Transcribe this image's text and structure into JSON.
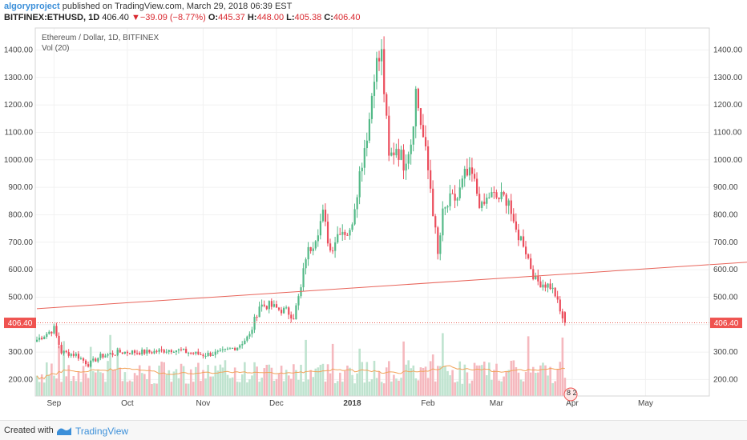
{
  "header": {
    "author": "algoryproject",
    "published_text": "published on TradingView.com, March 29, 2018 06:39 EST",
    "symbol": "BITFINEX:ETHUSD, 1D",
    "last": "406.40",
    "change_arrow": "▼",
    "change": "−39.09 (−8.77%)",
    "o_label": "O:",
    "o_value": "445.37",
    "h_label": "H:",
    "h_value": "448.00",
    "l_label": "L:",
    "l_value": "405.38",
    "c_label": "C:",
    "c_value": "406.40"
  },
  "legend": {
    "title": "Ethereum / Dollar, 1D, BITFINEX",
    "vol": "Vol (20)"
  },
  "colors": {
    "up": "#53b987",
    "down": "#eb4d5c",
    "vol_up": "#bfe3cf",
    "vol_down": "#f5b8be",
    "trend": "#e8645a",
    "price_line": "#e8645a",
    "ma": "#f2a35a",
    "badge": "#ef5350"
  },
  "footer": {
    "created_with": "Created with",
    "brand": "TradingView"
  },
  "chart_data": {
    "type": "candlestick",
    "ylim": [
      140,
      1480
    ],
    "y_ticks": [
      "1400.00",
      "1300.00",
      "1200.00",
      "1100.00",
      "1000.00",
      "900.00",
      "800.00",
      "700.00",
      "600.00",
      "500.00",
      "400.00",
      "300.00",
      "200.00"
    ],
    "x_ticks": [
      "Sep",
      "Oct",
      "Nov",
      "Dec",
      "2018",
      "Feb",
      "Mar",
      "Apr",
      "May"
    ],
    "current_price_label": "406.40",
    "current_price": 406.4,
    "trendline": [
      [
        "2017-08-25",
        458
      ],
      [
        "2018-06-13",
        628
      ]
    ],
    "events_label": "8  2",
    "close_path": [
      [
        "2017-08-25",
        345
      ],
      [
        "2017-09-01",
        385
      ],
      [
        "2017-09-04",
        300
      ],
      [
        "2017-09-10",
        290
      ],
      [
        "2017-09-15",
        255
      ],
      [
        "2017-09-20",
        285
      ],
      [
        "2017-09-28",
        300
      ],
      [
        "2017-10-10",
        300
      ],
      [
        "2017-10-20",
        310
      ],
      [
        "2017-10-25",
        300
      ],
      [
        "2017-11-01",
        290
      ],
      [
        "2017-11-08",
        298
      ],
      [
        "2017-11-15",
        320
      ],
      [
        "2017-11-20",
        360
      ],
      [
        "2017-11-24",
        470
      ],
      [
        "2017-11-28",
        470
      ],
      [
        "2017-12-02",
        455
      ],
      [
        "2017-12-05",
        450
      ],
      [
        "2017-12-08",
        430
      ],
      [
        "2017-12-11",
        530
      ],
      [
        "2017-12-13",
        650
      ],
      [
        "2017-12-16",
        700
      ],
      [
        "2017-12-20",
        800
      ],
      [
        "2017-12-23",
        670
      ],
      [
        "2017-12-27",
        750
      ],
      [
        "2017-12-31",
        730
      ],
      [
        "2018-01-04",
        950
      ],
      [
        "2018-01-08",
        1150
      ],
      [
        "2018-01-10",
        1330
      ],
      [
        "2018-01-13",
        1380
      ],
      [
        "2018-01-16",
        1000
      ],
      [
        "2018-01-19",
        1050
      ],
      [
        "2018-01-22",
        990
      ],
      [
        "2018-01-25",
        1070
      ],
      [
        "2018-01-27",
        1250
      ],
      [
        "2018-01-30",
        1080
      ],
      [
        "2018-02-02",
        900
      ],
      [
        "2018-02-05",
        650
      ],
      [
        "2018-02-07",
        800
      ],
      [
        "2018-02-10",
        850
      ],
      [
        "2018-02-13",
        860
      ],
      [
        "2018-02-16",
        940
      ],
      [
        "2018-02-19",
        940
      ],
      [
        "2018-02-23",
        820
      ],
      [
        "2018-02-26",
        870
      ],
      [
        "2018-03-02",
        860
      ],
      [
        "2018-03-06",
        860
      ],
      [
        "2018-03-08",
        750
      ],
      [
        "2018-03-12",
        700
      ],
      [
        "2018-03-15",
        610
      ],
      [
        "2018-03-17",
        560
      ],
      [
        "2018-03-20",
        550
      ],
      [
        "2018-03-23",
        540
      ],
      [
        "2018-03-25",
        510
      ],
      [
        "2018-03-27",
        445
      ],
      [
        "2018-03-29",
        406.4
      ]
    ]
  }
}
